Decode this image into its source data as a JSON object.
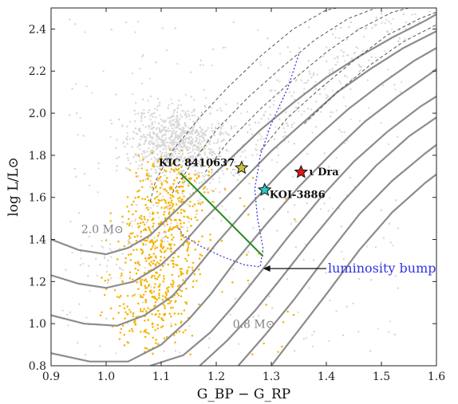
{
  "chart_data": {
    "type": "scatter",
    "xlabel": "G_BP − G_RP",
    "ylabel": "log L/L⊙",
    "xlim": [
      0.9,
      1.6
    ],
    "ylim": [
      0.8,
      2.5
    ],
    "x_ticks": [
      "0.9",
      "1.0",
      "1.1",
      "1.2",
      "1.3",
      "1.4",
      "1.5",
      "1.6"
    ],
    "y_ticks": [
      "0.8",
      "1.0",
      "1.2",
      "1.4",
      "1.6",
      "1.8",
      "2.0",
      "2.2",
      "2.4"
    ],
    "colors": {
      "field_stars": "#d8d8d8",
      "cluster_stars": "#f5b400",
      "tracks": "#8c8c8c",
      "dashed_tracks": "#444444",
      "bump_curve": "#3b3bd6",
      "green_line": "#1e8c1e",
      "star_kic": "#c8c23a",
      "star_koi": "#2cc9c9",
      "star_dra": "#e01818",
      "annotation": "#3333e0"
    },
    "named_stars": [
      {
        "name": "KIC 8410637",
        "x": 1.246,
        "y": 1.74,
        "color": "#c8c23a"
      },
      {
        "name": "KOI-3886",
        "x": 1.288,
        "y": 1.635,
        "color": "#2cc9c9"
      },
      {
        "name": "Dra",
        "x": 1.354,
        "y": 1.72,
        "color": "#e01818",
        "prefix": "ι"
      }
    ],
    "mass_labels": [
      {
        "text": "2.0 M⊙",
        "x": 0.955,
        "y": 1.43
      },
      {
        "text": "0.8 M⊙",
        "x": 1.23,
        "y": 0.98
      }
    ],
    "annotation": {
      "text": "luminosity bump",
      "arrow_to": [
        1.285,
        1.262
      ],
      "text_at": [
        1.4,
        1.262
      ]
    },
    "green_line": {
      "x": [
        1.135,
        1.285
      ],
      "y": [
        1.715,
        1.32
      ]
    },
    "tracks": [
      {
        "x": [
          0.9,
          0.95,
          1.0,
          1.04,
          1.08,
          1.12,
          1.16,
          1.22,
          1.28,
          1.34,
          1.4,
          1.46,
          1.52,
          1.58,
          1.6
        ],
        "y": [
          1.4,
          1.35,
          1.33,
          1.36,
          1.42,
          1.52,
          1.62,
          1.77,
          1.92,
          2.05,
          2.17,
          2.27,
          2.36,
          2.44,
          2.47
        ]
      },
      {
        "x": [
          0.9,
          0.95,
          1.0,
          1.05,
          1.1,
          1.14,
          1.18,
          1.24,
          1.3,
          1.36,
          1.42,
          1.48,
          1.54,
          1.6
        ],
        "y": [
          1.23,
          1.19,
          1.17,
          1.2,
          1.28,
          1.38,
          1.5,
          1.66,
          1.82,
          1.96,
          2.1,
          2.21,
          2.31,
          2.39
        ]
      },
      {
        "x": [
          0.9,
          0.96,
          1.02,
          1.07,
          1.12,
          1.16,
          1.2,
          1.26,
          1.32,
          1.38,
          1.44,
          1.5,
          1.56,
          1.6
        ],
        "y": [
          1.04,
          1.0,
          0.99,
          1.04,
          1.13,
          1.25,
          1.38,
          1.56,
          1.73,
          1.88,
          2.02,
          2.14,
          2.25,
          2.31
        ]
      },
      {
        "x": [
          0.9,
          0.97,
          1.04,
          1.1,
          1.15,
          1.19,
          1.23,
          1.29,
          1.35,
          1.41,
          1.47,
          1.53,
          1.59,
          1.6
        ],
        "y": [
          0.86,
          0.82,
          0.82,
          0.9,
          1.02,
          1.14,
          1.28,
          1.47,
          1.65,
          1.81,
          1.96,
          2.08,
          2.19,
          2.21
        ]
      },
      {
        "x": [
          1.08,
          1.14,
          1.19,
          1.23,
          1.27,
          1.33,
          1.39,
          1.45,
          1.51,
          1.57,
          1.6
        ],
        "y": [
          0.8,
          0.85,
          0.96,
          1.08,
          1.21,
          1.41,
          1.6,
          1.77,
          1.91,
          2.03,
          2.08
        ]
      },
      {
        "x": [
          1.17,
          1.22,
          1.27,
          1.31,
          1.37,
          1.43,
          1.49,
          1.55,
          1.6
        ],
        "y": [
          0.8,
          0.92,
          1.06,
          1.19,
          1.39,
          1.58,
          1.75,
          1.89,
          1.98
        ]
      },
      {
        "x": [
          1.24,
          1.29,
          1.34,
          1.4,
          1.46,
          1.52,
          1.58,
          1.6
        ],
        "y": [
          0.8,
          0.95,
          1.11,
          1.32,
          1.52,
          1.68,
          1.81,
          1.85
        ]
      },
      {
        "x": [
          1.3,
          1.35,
          1.4,
          1.46,
          1.52,
          1.58,
          1.6
        ],
        "y": [
          0.8,
          0.97,
          1.14,
          1.35,
          1.53,
          1.67,
          1.71
        ]
      }
    ],
    "dashed_tracks": [
      {
        "x": [
          1.08,
          1.09,
          1.12,
          1.17,
          1.22,
          1.28,
          1.34,
          1.4,
          1.46,
          1.52
        ],
        "y": [
          1.58,
          1.68,
          1.82,
          1.98,
          2.12,
          2.27,
          2.4,
          2.49,
          2.52,
          2.5
        ]
      },
      {
        "x": [
          1.12,
          1.15,
          1.2,
          1.26,
          1.32,
          1.38,
          1.44,
          1.5,
          1.56
        ],
        "y": [
          1.62,
          1.74,
          1.92,
          2.08,
          2.22,
          2.35,
          2.45,
          2.51,
          2.5
        ]
      },
      {
        "x": [
          1.18,
          1.22,
          1.28,
          1.34,
          1.4,
          1.46,
          1.52,
          1.58,
          1.6
        ],
        "y": [
          1.72,
          1.86,
          2.02,
          2.16,
          2.29,
          2.4,
          2.48,
          2.52,
          2.52
        ]
      },
      {
        "x": [
          1.28,
          1.33,
          1.39,
          1.45,
          1.51,
          1.57,
          1.6
        ],
        "y": [
          1.82,
          1.98,
          2.12,
          2.25,
          2.37,
          2.45,
          2.48
        ]
      },
      {
        "x": [
          1.36,
          1.42,
          1.48,
          1.54,
          1.6
        ],
        "y": [
          1.95,
          2.1,
          2.23,
          2.34,
          2.42
        ]
      }
    ],
    "bump_curve": {
      "x": [
        1.35,
        1.33,
        1.3,
        1.28,
        1.27,
        1.275,
        1.285,
        1.28,
        1.25,
        1.21,
        1.17,
        1.14,
        1.13
      ],
      "y": [
        2.28,
        2.12,
        1.95,
        1.8,
        1.64,
        1.5,
        1.36,
        1.27,
        1.28,
        1.32,
        1.37,
        1.42,
        1.46
      ]
    }
  }
}
